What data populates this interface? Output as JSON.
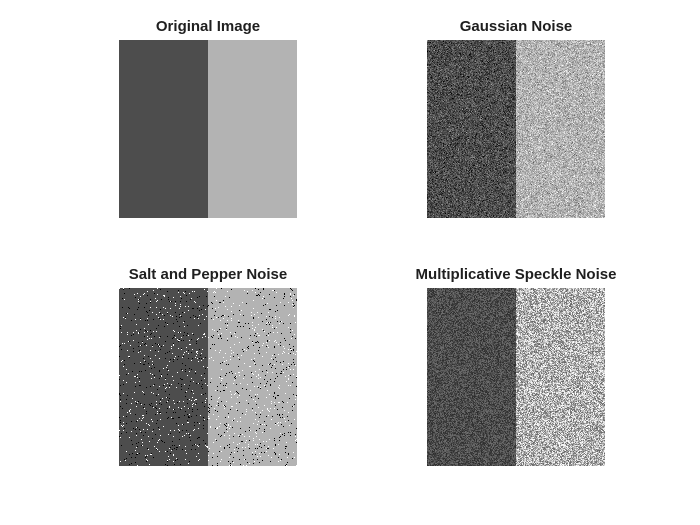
{
  "figure": {
    "background": "#ffffff",
    "panels": [
      {
        "title": "Original Image",
        "dark_gray": "#4d4d4d",
        "light_gray": "#b3b3b3",
        "noise": "none"
      },
      {
        "title": "Gaussian Noise",
        "dark_gray": "#4d4d4d",
        "light_gray": "#b3b3b3",
        "noise": "gaussian"
      },
      {
        "title": "Salt and Pepper Noise",
        "dark_gray": "#4d4d4d",
        "light_gray": "#b3b3b3",
        "noise": "salt-and-pepper"
      },
      {
        "title": "Multiplicative Speckle Noise",
        "dark_gray": "#4d4d4d",
        "light_gray": "#b3b3b3",
        "noise": "speckle"
      }
    ]
  }
}
